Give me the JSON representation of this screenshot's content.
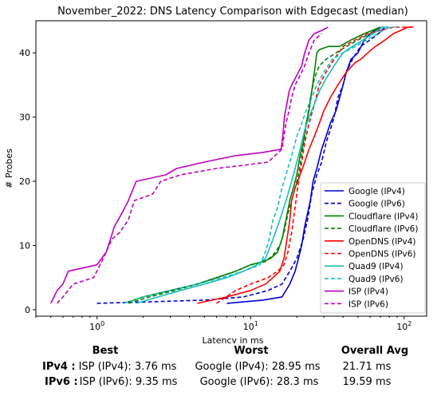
{
  "chart_data": {
    "type": "line",
    "title": "November_2022: DNS Latency Comparison with Edgecast (median)",
    "xlabel": "Latency in ms",
    "ylabel": "# Probes",
    "xscale": "log",
    "xlim": [
      0.4,
      140
    ],
    "ylim": [
      -1,
      45
    ],
    "xticks": [
      1,
      10,
      100
    ],
    "xtick_labels": [
      "10^0",
      "10^1",
      "10^2"
    ],
    "yticks": [
      0,
      10,
      20,
      30,
      40
    ],
    "legend_position": "lower right",
    "series": [
      {
        "name": "Google (IPv4)",
        "color": "#0000cc",
        "dash": "solid",
        "x": [
          7,
          12,
          16,
          18,
          19.5,
          20.5,
          21.5,
          22.5,
          23.5,
          24.5,
          25.5,
          27,
          29,
          31,
          33,
          36,
          38,
          40,
          42,
          45,
          50,
          55,
          60,
          70
        ],
        "y": [
          1,
          1.5,
          2,
          4,
          6,
          8,
          10,
          13,
          15,
          17,
          20,
          22,
          25,
          27,
          29,
          31,
          33,
          35,
          37,
          39,
          40,
          42,
          43,
          44
        ]
      },
      {
        "name": "Google (IPv6)",
        "color": "#0000cc",
        "dash": "dashed",
        "x": [
          1,
          2,
          5,
          9,
          13,
          16,
          18,
          20,
          22,
          23.5,
          25,
          27,
          29,
          31,
          33,
          35,
          37,
          40,
          42,
          46,
          52,
          60,
          68,
          75
        ],
        "y": [
          1,
          1.2,
          1.5,
          2,
          3,
          4,
          6,
          8,
          11,
          14,
          18,
          21,
          23,
          26,
          28,
          30,
          33,
          35,
          37,
          39,
          41,
          42,
          43,
          44
        ]
      },
      {
        "name": "Cloudflare (IPv4)",
        "color": "#008000",
        "dash": "solid",
        "x": [
          1.5,
          2,
          3,
          4.5,
          6,
          8,
          10,
          12,
          13.5,
          15,
          16,
          17,
          18,
          19,
          20,
          21,
          22,
          23,
          24,
          25,
          26,
          27,
          28,
          32,
          38,
          45,
          55,
          70
        ],
        "y": [
          1,
          2,
          3,
          4,
          5,
          6,
          7,
          7.5,
          8,
          9,
          11,
          14,
          17,
          19,
          21,
          24,
          26,
          29,
          31,
          34,
          37,
          40,
          40.5,
          41,
          41,
          42,
          43,
          44
        ]
      },
      {
        "name": "Cloudflare (IPv6)",
        "color": "#008000",
        "dash": "dashed",
        "x": [
          1.6,
          2.2,
          3.2,
          4.5,
          6,
          8,
          10,
          12.5,
          14,
          15.5,
          16.5,
          17.5,
          18.5,
          19.5,
          20.5,
          21.5,
          22.5,
          23.5,
          24.5,
          26,
          28,
          31,
          36,
          42,
          50,
          60,
          72
        ],
        "y": [
          1,
          2,
          3,
          4,
          5,
          6,
          7,
          7.5,
          8.5,
          10,
          12,
          15,
          17,
          19,
          21,
          24,
          27,
          30,
          33,
          36,
          38,
          39,
          40,
          41,
          42,
          43,
          44
        ]
      },
      {
        "name": "OpenDNS (IPv4)",
        "color": "#ff0000",
        "dash": "solid",
        "x": [
          4.5,
          7,
          10,
          12.5,
          14,
          15.5,
          16.5,
          17,
          17.5,
          18,
          18.5,
          19.5,
          21,
          22.5,
          24,
          26,
          28,
          30,
          33,
          37,
          42,
          48,
          52,
          58,
          65,
          75,
          85,
          95,
          105,
          115
        ],
        "y": [
          1,
          2,
          3,
          4,
          5,
          6,
          8,
          10,
          12,
          14,
          17,
          19,
          21,
          23,
          25,
          27,
          29,
          31,
          33,
          35,
          37,
          38.5,
          39,
          40,
          41,
          42,
          43,
          43.5,
          44,
          44
        ]
      },
      {
        "name": "OpenDNS (IPv6)",
        "color": "#ff0000",
        "dash": "dashed",
        "x": [
          6,
          8,
          10,
          13,
          15,
          16.5,
          17.5,
          18.5,
          19.5,
          20.5,
          21.5,
          22.5,
          24,
          26,
          28,
          31,
          35,
          40,
          48,
          58,
          70,
          85,
          100,
          115
        ],
        "y": [
          1,
          3,
          4,
          5,
          6,
          7,
          9,
          12,
          16,
          20,
          23,
          26,
          29,
          32,
          35,
          37,
          39,
          41,
          42,
          43,
          43.5,
          44,
          44,
          44
        ]
      },
      {
        "name": "Quad9 (IPv4)",
        "color": "#17bebe",
        "dash": "solid",
        "x": [
          1.8,
          2.5,
          3.5,
          5,
          7,
          9,
          11,
          12.5,
          13.5,
          14.5,
          15.5,
          16.5,
          17.5,
          18.5,
          19.5,
          20.5,
          21.5,
          22.5,
          24,
          26,
          28,
          31,
          35,
          40,
          46,
          54,
          63,
          72,
          80
        ],
        "y": [
          1,
          2,
          3,
          4,
          5,
          6,
          7,
          8,
          10,
          12,
          14,
          16,
          18,
          20,
          22,
          24,
          26,
          28,
          30,
          32,
          34,
          36,
          38,
          40,
          41,
          42,
          43,
          44,
          44
        ]
      },
      {
        "name": "Quad9 (IPv6)",
        "color": "#17bebe",
        "dash": "dashed",
        "x": [
          1.5,
          2,
          3,
          4.5,
          6.5,
          9,
          11.5,
          12.5,
          13.2,
          14,
          15,
          16,
          17,
          18,
          19,
          20,
          21.5,
          23,
          25,
          27,
          30,
          34,
          40,
          48,
          57,
          67,
          80,
          92
        ],
        "y": [
          1,
          2,
          3,
          4,
          5,
          6,
          7,
          9,
          11,
          14,
          16,
          19,
          21,
          23,
          25,
          27,
          29,
          31,
          33,
          35,
          37,
          39,
          40,
          41,
          42,
          43,
          44,
          44
        ]
      },
      {
        "name": "ISP (IPv4)",
        "color": "#bf00bf",
        "dash": "solid",
        "x": [
          0.5,
          0.55,
          0.6,
          0.65,
          1.0,
          1.15,
          1.3,
          1.45,
          1.6,
          1.8,
          2.8,
          3.3,
          5,
          8,
          12,
          15.8,
          16.2,
          16.6,
          17.2,
          17.8,
          18.5,
          19.5,
          20.5,
          21.5,
          22.5,
          24,
          26,
          29,
          32
        ],
        "y": [
          1,
          3,
          4,
          6,
          7,
          9,
          13,
          15,
          17,
          20,
          21,
          22,
          23,
          24,
          24.5,
          25,
          27,
          30,
          32,
          34,
          35,
          36,
          37,
          38,
          40,
          42,
          43,
          43.5,
          44
        ]
      },
      {
        "name": "ISP (IPv6)",
        "color": "#bf00bf",
        "dash": "dashed",
        "x": [
          0.55,
          0.6,
          0.7,
          0.95,
          1.1,
          1.25,
          1.4,
          1.6,
          1.75,
          2.3,
          2.6,
          3.5,
          6,
          9,
          13,
          16,
          16.5,
          17,
          17.8,
          18.5,
          19.5,
          20.5,
          21.5,
          22.5,
          24,
          26,
          29
        ],
        "y": [
          1,
          2,
          4,
          5,
          8,
          11,
          12,
          14,
          17,
          18,
          20,
          21,
          22,
          22.5,
          23,
          25,
          27,
          29,
          31,
          33,
          35,
          36,
          37,
          38,
          40,
          42,
          43
        ]
      }
    ]
  },
  "stats": {
    "headers": {
      "best": "Best",
      "worst": "Worst",
      "avg": "Overall Avg"
    },
    "rows": [
      {
        "label": "IPv4 :",
        "best": "ISP (IPv4): 3.76 ms",
        "worst": "Google (IPv4): 28.95 ms",
        "avg": "21.71 ms"
      },
      {
        "label": "IPv6 :",
        "best": "ISP (IPv6): 9.35 ms",
        "worst": "Google (IPv6): 28.3 ms",
        "avg": "19.59 ms"
      }
    ]
  }
}
